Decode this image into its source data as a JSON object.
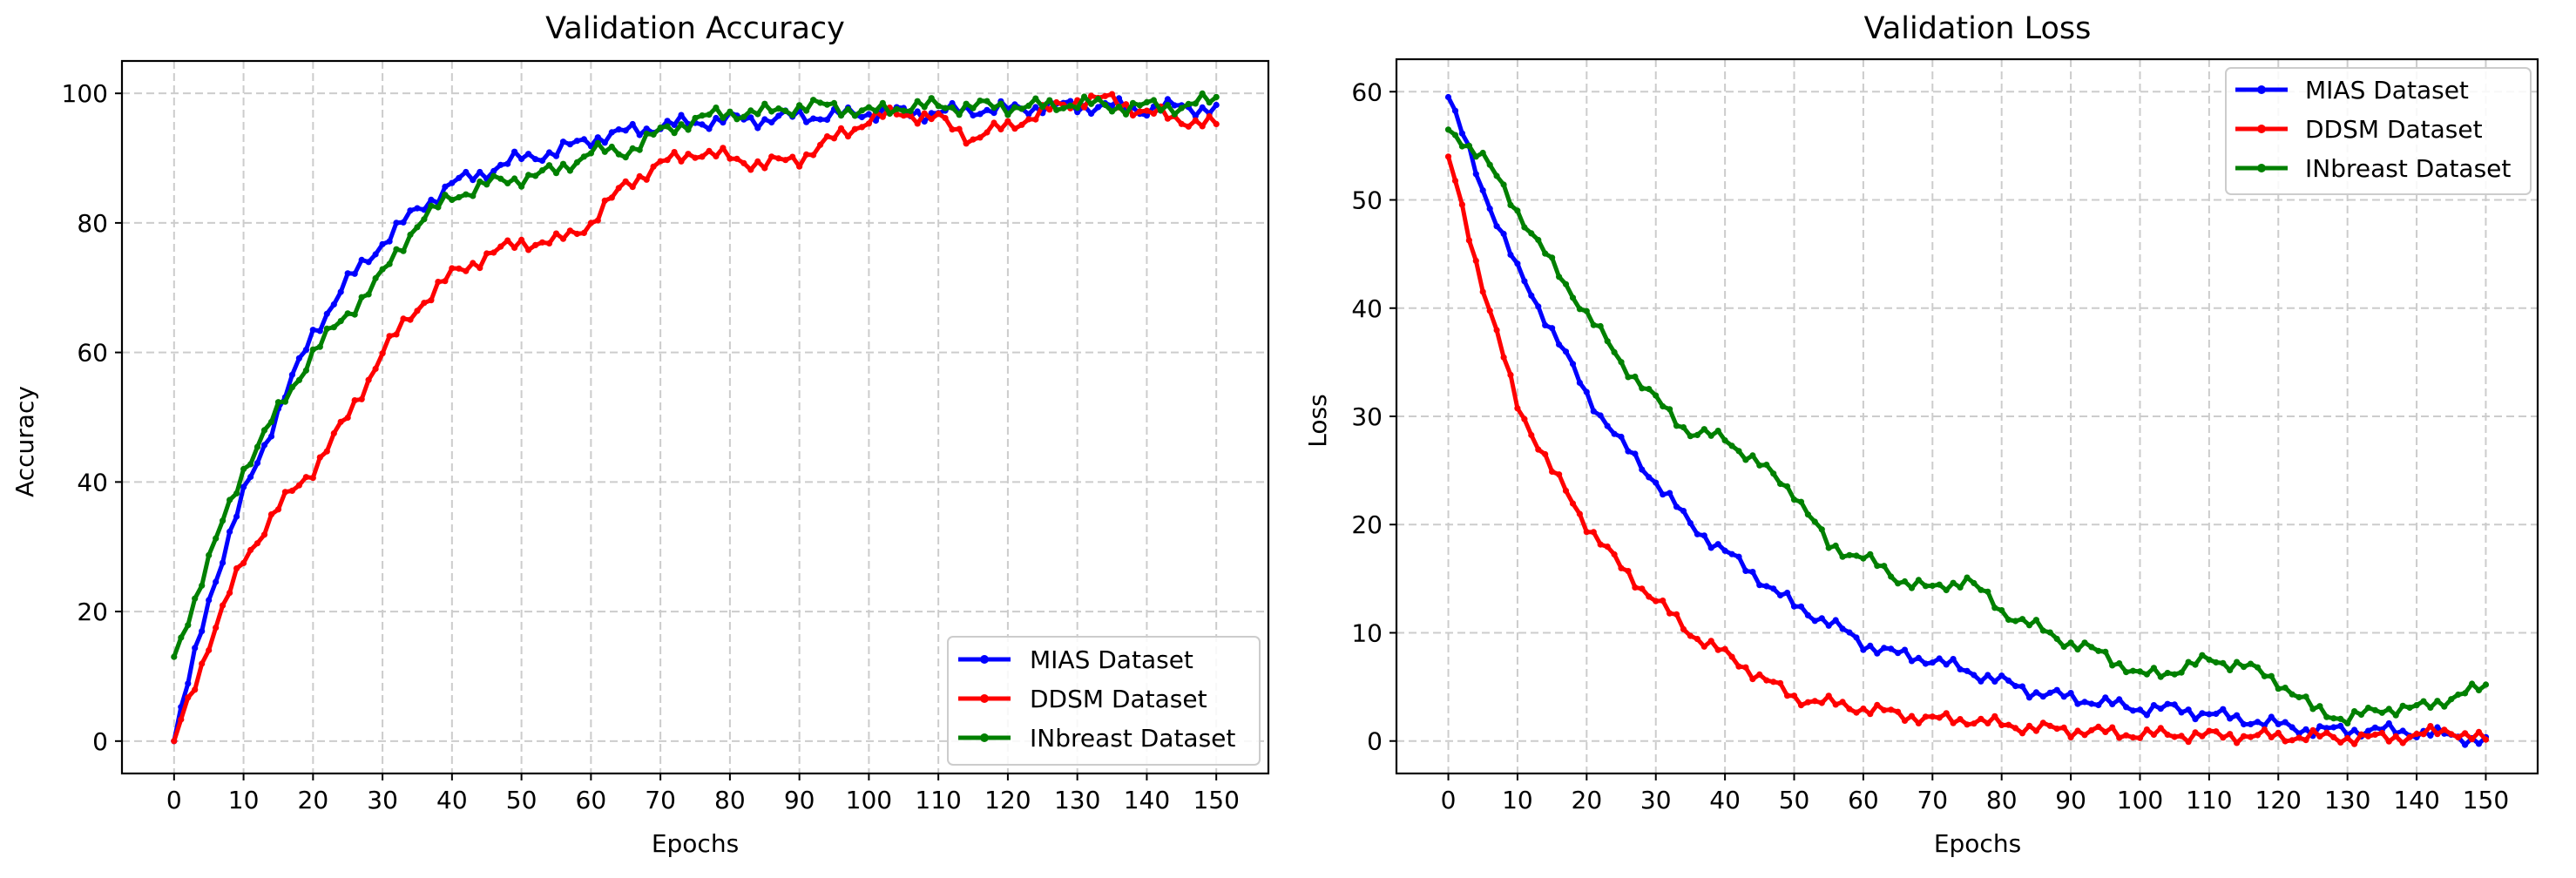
{
  "chart_data": [
    {
      "type": "line",
      "title": "Validation Accuracy",
      "xlabel": "Epochs",
      "ylabel": "Accuracy",
      "xlim": [
        -7.5,
        157.5
      ],
      "ylim": [
        -5,
        105
      ],
      "xticks": [
        0,
        10,
        20,
        30,
        40,
        50,
        60,
        70,
        80,
        90,
        100,
        110,
        120,
        130,
        140,
        150
      ],
      "yticks": [
        0,
        20,
        40,
        60,
        80,
        100
      ],
      "grid": true,
      "legend_position": "lower-right",
      "series": [
        {
          "name": "MIAS Dataset",
          "color": "#0000ff",
          "x": [
            0,
            5,
            10,
            15,
            20,
            25,
            30,
            35,
            40,
            45,
            50,
            55,
            60,
            65,
            70,
            75,
            80,
            85,
            90,
            95,
            100,
            105,
            110,
            115,
            120,
            125,
            130,
            135,
            140,
            145,
            150
          ],
          "values": [
            0,
            22,
            38,
            51,
            63,
            71,
            77,
            82,
            86,
            88,
            90,
            91,
            93,
            94,
            95,
            95.5,
            96,
            96,
            96.5,
            96.5,
            97,
            97,
            97,
            97.5,
            97.5,
            98,
            98,
            98,
            97.5,
            98,
            97.5
          ]
        },
        {
          "name": "DDSM Dataset",
          "color": "#ff0000",
          "x": [
            0,
            5,
            10,
            15,
            20,
            25,
            30,
            35,
            40,
            45,
            50,
            55,
            60,
            65,
            70,
            75,
            80,
            85,
            90,
            95,
            100,
            105,
            110,
            115,
            120,
            125,
            130,
            135,
            140,
            145,
            150
          ],
          "values": [
            0,
            15,
            28,
            36,
            42,
            50,
            60,
            67,
            72,
            75,
            77,
            77,
            80,
            86,
            89,
            91,
            90,
            89,
            90,
            93,
            96,
            97,
            96,
            93,
            95,
            97,
            99,
            99,
            97,
            96,
            95
          ]
        },
        {
          "name": "INbreast Dataset",
          "color": "#008000",
          "x": [
            0,
            5,
            10,
            15,
            20,
            25,
            30,
            35,
            40,
            45,
            50,
            55,
            60,
            65,
            70,
            75,
            80,
            85,
            90,
            95,
            100,
            105,
            110,
            115,
            120,
            125,
            130,
            135,
            140,
            145,
            150
          ],
          "values": [
            13,
            28,
            42,
            51,
            60,
            66,
            72,
            80,
            84,
            86,
            87,
            88,
            91,
            91,
            94,
            96,
            97,
            97,
            98,
            98,
            97,
            98,
            98,
            98,
            98,
            98,
            98.5,
            98,
            98,
            98,
            99
          ]
        }
      ]
    },
    {
      "type": "line",
      "title": "Validation Loss",
      "xlabel": "Epochs",
      "ylabel": "Loss",
      "xlim": [
        -7.5,
        157.5
      ],
      "ylim": [
        -3,
        63
      ],
      "xticks": [
        0,
        10,
        20,
        30,
        40,
        50,
        60,
        70,
        80,
        90,
        100,
        110,
        120,
        130,
        140,
        150
      ],
      "yticks": [
        0,
        10,
        20,
        30,
        40,
        50,
        60
      ],
      "grid": true,
      "legend_position": "top-right",
      "series": [
        {
          "name": "MIAS Dataset",
          "color": "#0000ff",
          "x": [
            0,
            5,
            10,
            15,
            20,
            25,
            30,
            35,
            40,
            45,
            50,
            55,
            60,
            65,
            70,
            75,
            80,
            85,
            90,
            95,
            100,
            105,
            110,
            115,
            120,
            125,
            130,
            135,
            140,
            145,
            150
          ],
          "values": [
            59.5,
            51,
            43.5,
            38,
            32,
            27.5,
            24,
            20,
            17.5,
            15,
            12.5,
            11,
            9,
            8,
            7.5,
            6.5,
            5.5,
            4.5,
            4,
            3.5,
            3,
            3,
            2.5,
            2,
            1.5,
            1,
            1,
            1,
            0.8,
            0.5,
            0
          ]
        },
        {
          "name": "DDSM Dataset",
          "color": "#ff0000",
          "x": [
            0,
            5,
            10,
            15,
            20,
            25,
            30,
            35,
            40,
            45,
            50,
            55,
            60,
            65,
            70,
            75,
            80,
            85,
            90,
            95,
            100,
            105,
            110,
            115,
            120,
            125,
            130,
            135,
            140,
            145,
            150
          ],
          "values": [
            54,
            42,
            31,
            25,
            20,
            16,
            13,
            10,
            8,
            6,
            4,
            3.5,
            3,
            2.5,
            2,
            2,
            1.5,
            1.2,
            1,
            0.8,
            0.6,
            0.6,
            0.5,
            0.5,
            0.4,
            0.4,
            0.3,
            0.3,
            0.5,
            1,
            0
          ]
        },
        {
          "name": "INbreast Dataset",
          "color": "#008000",
          "x": [
            0,
            5,
            10,
            15,
            20,
            25,
            30,
            35,
            40,
            45,
            50,
            55,
            60,
            65,
            70,
            75,
            80,
            85,
            90,
            95,
            100,
            105,
            110,
            115,
            120,
            125,
            130,
            135,
            140,
            145,
            150
          ],
          "values": [
            56.5,
            54,
            49,
            44,
            39.5,
            35,
            31.5,
            28.5,
            28,
            25.5,
            23,
            18,
            17,
            15,
            14,
            15,
            12,
            10.5,
            9,
            8,
            6,
            6.5,
            7.5,
            7,
            5.5,
            3,
            2,
            3,
            3,
            4,
            5
          ]
        }
      ]
    }
  ]
}
